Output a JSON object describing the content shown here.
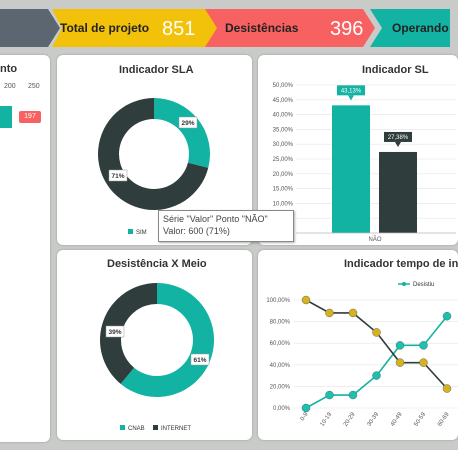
{
  "colors": {
    "teal": "#12b3a3",
    "dark": "#2f3d3d",
    "yellow": "#f2c10a",
    "red": "#f86161",
    "olive": "#c9a227",
    "gray": "#5b6670"
  },
  "kpis": [
    {
      "label": "Total de projeto",
      "value": "851"
    },
    {
      "label": "Desistências",
      "value": "396"
    },
    {
      "label": "Operando",
      "value": ""
    }
  ],
  "panel_left": {
    "title_fragment": "nto",
    "ticks": [
      "200",
      "250"
    ],
    "badge": "197"
  },
  "panel_sla_donut": {
    "title": "Indicador SLA",
    "legend": [
      "SIM"
    ]
  },
  "panel_sla_bars": {
    "title": "Indicador SL",
    "category": "NÃO"
  },
  "panel_meio": {
    "title": "Desistência X Meio",
    "legend": [
      "CNAB",
      "INTERNET"
    ]
  },
  "panel_tempo": {
    "title": "Indicador tempo de in",
    "legend": [
      "Desistiu"
    ]
  },
  "tooltip": {
    "line1": "Série \"Valor\" Ponto \"NÃO\"",
    "line2": "Valor: 600 (71%)"
  },
  "chart_data": [
    {
      "type": "pie",
      "title": "Indicador SLA",
      "labels": [
        "SIM",
        "NÃO"
      ],
      "values": [
        29,
        71
      ],
      "data_labels": [
        "29%",
        "71%"
      ]
    },
    {
      "type": "bar",
      "title": "Indicador SL",
      "categories": [
        "NÃO"
      ],
      "series": [
        {
          "values": [
            43.13
          ]
        },
        {
          "values": [
            27.38
          ]
        }
      ],
      "data_labels": [
        "43,13%",
        "27,38%"
      ],
      "yticks": [
        "0,00%",
        "5,00%",
        "10,00%",
        "15,00%",
        "20,00%",
        "25,00%",
        "30,00%",
        "35,00%",
        "40,00%",
        "45,00%",
        "50,00%"
      ],
      "ylim": [
        0,
        50
      ]
    },
    {
      "type": "pie",
      "title": "Desistência X Meio",
      "labels": [
        "CNAB",
        "INTERNET"
      ],
      "values": [
        61,
        39
      ],
      "data_labels": [
        "61%",
        "39%"
      ]
    },
    {
      "type": "line",
      "title": "Indicador tempo de in",
      "categories": [
        "0-9",
        "10-19",
        "20-29",
        "30-39",
        "40-49",
        "50-59",
        "60-69"
      ],
      "yticks": [
        "0,00%",
        "20,00%",
        "40,00%",
        "60,00%",
        "80,00%",
        "100,00%"
      ],
      "ylim": [
        0,
        100
      ],
      "series": [
        {
          "name": "Desistiu",
          "values": [
            0,
            12,
            12,
            30,
            58,
            58,
            85
          ]
        },
        {
          "values": [
            100,
            88,
            88,
            70,
            42,
            42,
            18
          ]
        }
      ]
    }
  ]
}
